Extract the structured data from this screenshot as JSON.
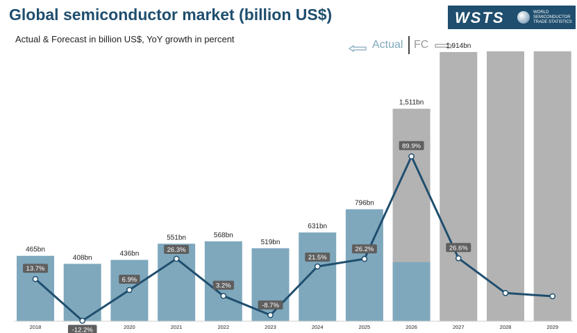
{
  "header": {
    "title": "Global semiconductor market (billion US$)",
    "subtitle": "Actual & Forecast in billion US$, YoY growth in percent"
  },
  "logo": {
    "wordmark": "WSTS",
    "lines": [
      "WORLD",
      "SEMICONDUCTOR",
      "TRADE STATISTICS"
    ]
  },
  "legend": {
    "actual_label": "Actual",
    "forecast_label": "FC",
    "placement": "top-right"
  },
  "colors": {
    "actual_bar": "#7fa8bd",
    "forecast_bar": "#b3b3b3",
    "growth_line": "#1f4e6e",
    "growth_label_bg": "#5f5f5f",
    "title": "#1f4e6e"
  },
  "chart_data": {
    "type": "bar",
    "categories": [
      "2018",
      "2019",
      "2020",
      "2021",
      "2022",
      "2023",
      "2024",
      "2025",
      "2026",
      "2027",
      "2028",
      "2029"
    ],
    "series": [
      {
        "name": "Actual",
        "values": [
          465,
          408,
          436,
          551,
          568,
          519,
          631,
          796,
          null,
          null,
          null,
          null
        ],
        "value_labels": [
          "465bn",
          "408bn",
          "436bn",
          "551bn",
          "568bn",
          "519bn",
          "631bn",
          "796bn",
          "",
          "",
          "",
          ""
        ]
      },
      {
        "name": "FC",
        "values": [
          null,
          null,
          null,
          null,
          null,
          null,
          null,
          null,
          1511,
          1914,
          2000,
          2040
        ],
        "value_labels": [
          "",
          "",
          "",
          "",
          "",
          "",
          "",
          "",
          "1,511bn",
          "1,914bn",
          "",
          ""
        ]
      },
      {
        "type": "line",
        "values": [
          13.7,
          -12.2,
          6.9,
          26.3,
          3.2,
          -8.7,
          21.5,
          26.2,
          89.9,
          26.6,
          5,
          3
        ],
        "value_labels": [
          "13.7%",
          "-12.2%",
          "6.9%",
          "26.3%",
          "3.2%",
          "-8.7%",
          "21.5%",
          "26.2%",
          "89.9%",
          "26.6%",
          "",
          ""
        ]
      }
    ],
    "stacked_base_2026": 420,
    "grid": false,
    "ylim": [
      0,
      2100
    ]
  }
}
